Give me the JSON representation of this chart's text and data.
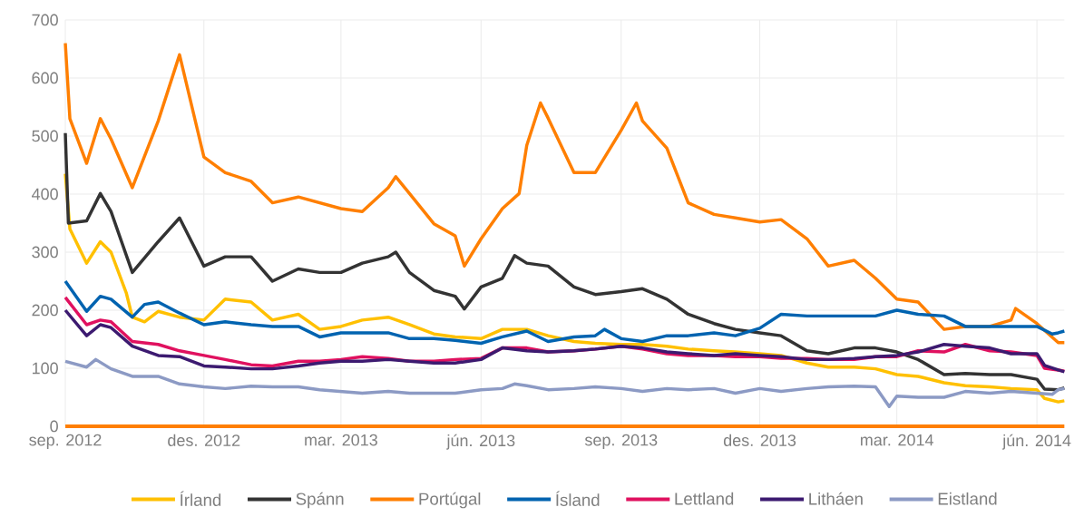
{
  "chart_data": {
    "type": "line",
    "xlim": [
      "2012-09-01",
      "2014-06-19"
    ],
    "xticks": [
      {
        "value": "2012-09-01",
        "label": "sep. 2012"
      },
      {
        "value": "2012-12-01",
        "label": "des. 2012"
      },
      {
        "value": "2013-03-01",
        "label": "mar. 2013"
      },
      {
        "value": "2013-06-01",
        "label": "jún. 2013"
      },
      {
        "value": "2013-09-01",
        "label": "sep. 2013"
      },
      {
        "value": "2013-12-01",
        "label": "des. 2013"
      },
      {
        "value": "2014-03-01",
        "label": "mar. 2014"
      },
      {
        "value": "2014-06-01",
        "label": "jún. 2014"
      }
    ],
    "ylim": [
      0,
      700
    ],
    "yticks": [
      0,
      100,
      200,
      300,
      400,
      500,
      600,
      700
    ],
    "grid": true,
    "legend": "bottom",
    "series": [
      {
        "name": "Írland",
        "color": "#ffc000",
        "x": [
          "2012-09-01",
          "2012-09-04",
          "2012-09-15",
          "2012-09-24",
          "2012-10-01",
          "2012-10-11",
          "2012-10-15",
          "2012-10-23",
          "2012-11-01",
          "2012-11-15",
          "2012-12-01",
          "2012-12-15",
          "2013-01-01",
          "2013-01-15",
          "2013-02-01",
          "2013-02-15",
          "2013-03-01",
          "2013-03-15",
          "2013-04-01",
          "2013-04-15",
          "2013-05-01",
          "2013-05-15",
          "2013-06-01",
          "2013-06-15",
          "2013-07-01",
          "2013-07-15",
          "2013-08-01",
          "2013-08-15",
          "2013-09-01",
          "2013-09-15",
          "2013-10-01",
          "2013-10-15",
          "2013-11-01",
          "2013-11-15",
          "2013-12-01",
          "2013-12-15",
          "2014-01-01",
          "2014-01-15",
          "2014-02-01",
          "2014-02-15",
          "2014-03-01",
          "2014-03-15",
          "2014-04-01",
          "2014-04-15",
          "2014-05-01",
          "2014-05-15",
          "2014-06-01",
          "2014-06-06",
          "2014-06-15",
          "2014-06-19"
        ],
        "values": [
          435,
          340,
          281,
          318,
          300,
          230,
          188,
          180,
          198,
          188,
          183,
          219,
          214,
          183,
          193,
          167,
          172,
          183,
          188,
          175,
          159,
          154,
          151,
          167,
          167,
          156,
          146,
          143,
          141,
          141,
          138,
          133,
          130,
          128,
          125,
          122,
          109,
          102,
          102,
          99,
          89,
          86,
          75,
          70,
          68,
          65,
          63,
          48,
          42,
          44
        ]
      },
      {
        "name": "Spánn",
        "color": "#333333",
        "x": [
          "2012-09-01",
          "2012-09-03",
          "2012-09-15",
          "2012-09-24",
          "2012-10-01",
          "2012-10-15",
          "2012-11-01",
          "2012-11-15",
          "2012-12-01",
          "2012-12-15",
          "2013-01-01",
          "2013-01-15",
          "2013-02-01",
          "2013-02-15",
          "2013-03-01",
          "2013-03-15",
          "2013-04-01",
          "2013-04-06",
          "2013-04-15",
          "2013-05-01",
          "2013-05-15",
          "2013-05-21",
          "2013-06-01",
          "2013-06-15",
          "2013-06-23",
          "2013-07-01",
          "2013-07-15",
          "2013-08-01",
          "2013-08-15",
          "2013-09-01",
          "2013-09-15",
          "2013-10-01",
          "2013-10-15",
          "2013-11-01",
          "2013-11-15",
          "2013-12-01",
          "2013-12-15",
          "2014-01-01",
          "2014-01-15",
          "2014-02-01",
          "2014-02-15",
          "2014-03-01",
          "2014-03-15",
          "2014-04-01",
          "2014-04-15",
          "2014-05-01",
          "2014-05-15",
          "2014-06-01",
          "2014-06-06",
          "2014-06-15",
          "2014-06-19"
        ],
        "values": [
          505,
          350,
          354,
          401,
          370,
          265,
          318,
          359,
          276,
          292,
          292,
          250,
          271,
          265,
          265,
          281,
          292,
          300,
          265,
          234,
          224,
          202,
          240,
          255,
          294,
          281,
          276,
          240,
          227,
          232,
          237,
          219,
          193,
          177,
          167,
          161,
          156,
          130,
          125,
          135,
          135,
          128,
          115,
          89,
          91,
          89,
          89,
          81,
          64,
          63,
          66
        ]
      },
      {
        "name": "Portúgal",
        "color": "#ff7f00",
        "x": [
          "2012-09-01",
          "2012-09-04",
          "2012-09-15",
          "2012-09-24",
          "2012-10-01",
          "2012-10-15",
          "2012-11-01",
          "2012-11-15",
          "2012-12-01",
          "2012-12-15",
          "2013-01-01",
          "2013-01-15",
          "2013-02-01",
          "2013-02-15",
          "2013-03-01",
          "2013-03-15",
          "2013-04-01",
          "2013-04-06",
          "2013-04-15",
          "2013-05-01",
          "2013-05-15",
          "2013-05-21",
          "2013-06-01",
          "2013-06-15",
          "2013-06-26",
          "2013-07-01",
          "2013-07-10",
          "2013-07-15",
          "2013-08-01",
          "2013-08-15",
          "2013-09-01",
          "2013-09-11",
          "2013-09-15",
          "2013-10-01",
          "2013-10-15",
          "2013-11-01",
          "2013-11-15",
          "2013-12-01",
          "2013-12-15",
          "2014-01-01",
          "2014-01-15",
          "2014-02-01",
          "2014-02-15",
          "2014-03-01",
          "2014-03-15",
          "2014-04-01",
          "2014-04-15",
          "2014-05-01",
          "2014-05-15",
          "2014-05-18",
          "2014-06-01",
          "2014-06-15",
          "2014-06-19"
        ],
        "values": [
          660,
          530,
          453,
          530,
          495,
          411,
          526,
          640,
          464,
          437,
          422,
          385,
          395,
          385,
          375,
          370,
          411,
          430,
          401,
          349,
          328,
          276,
          323,
          375,
          401,
          484,
          557,
          531,
          437,
          437,
          510,
          557,
          526,
          479,
          385,
          365,
          359,
          352,
          356,
          323,
          276,
          286,
          255,
          219,
          214,
          167,
          172,
          172,
          183,
          203,
          177,
          144,
          144
        ]
      },
      {
        "name": "Ísland",
        "color": "#0063b0",
        "x": [
          "2012-09-01",
          "2012-09-15",
          "2012-09-24",
          "2012-10-01",
          "2012-10-15",
          "2012-10-23",
          "2012-11-01",
          "2012-11-15",
          "2012-12-01",
          "2012-12-15",
          "2013-01-01",
          "2013-01-15",
          "2013-02-01",
          "2013-02-15",
          "2013-03-01",
          "2013-03-15",
          "2013-04-01",
          "2013-04-15",
          "2013-05-01",
          "2013-05-15",
          "2013-06-01",
          "2013-06-15",
          "2013-07-01",
          "2013-07-15",
          "2013-08-01",
          "2013-08-15",
          "2013-08-21",
          "2013-09-01",
          "2013-09-15",
          "2013-10-01",
          "2013-10-15",
          "2013-11-01",
          "2013-11-15",
          "2013-12-01",
          "2013-12-15",
          "2014-01-01",
          "2014-01-15",
          "2014-02-01",
          "2014-02-15",
          "2014-03-01",
          "2014-03-15",
          "2014-04-01",
          "2014-04-15",
          "2014-05-01",
          "2014-05-15",
          "2014-06-01",
          "2014-06-11",
          "2014-06-15",
          "2014-06-19"
        ],
        "values": [
          250,
          198,
          224,
          219,
          188,
          210,
          214,
          195,
          175,
          180,
          175,
          172,
          172,
          154,
          161,
          161,
          161,
          151,
          151,
          148,
          143,
          154,
          164,
          146,
          154,
          156,
          167,
          151,
          146,
          156,
          156,
          161,
          156,
          169,
          193,
          190,
          190,
          190,
          190,
          200,
          193,
          190,
          172,
          172,
          172,
          172,
          159,
          161,
          164
        ]
      },
      {
        "name": "Lettland",
        "color": "#e0115f",
        "x": [
          "2012-09-01",
          "2012-09-15",
          "2012-09-24",
          "2012-10-01",
          "2012-10-15",
          "2012-11-01",
          "2012-11-15",
          "2012-12-01",
          "2012-12-15",
          "2013-01-01",
          "2013-01-15",
          "2013-02-01",
          "2013-02-15",
          "2013-03-01",
          "2013-03-15",
          "2013-04-01",
          "2013-04-15",
          "2013-05-01",
          "2013-05-15",
          "2013-06-01",
          "2013-06-15",
          "2013-07-01",
          "2013-07-15",
          "2013-08-01",
          "2013-08-15",
          "2013-09-01",
          "2013-09-15",
          "2013-10-01",
          "2013-10-15",
          "2013-11-01",
          "2013-11-15",
          "2013-12-01",
          "2013-12-15",
          "2014-01-01",
          "2014-01-15",
          "2014-02-01",
          "2014-02-15",
          "2014-03-01",
          "2014-03-15",
          "2014-04-01",
          "2014-04-15",
          "2014-05-01",
          "2014-05-15",
          "2014-06-01",
          "2014-06-06",
          "2014-06-15",
          "2014-06-19"
        ],
        "values": [
          222,
          175,
          183,
          180,
          146,
          141,
          130,
          122,
          115,
          106,
          104,
          112,
          112,
          115,
          120,
          117,
          112,
          112,
          115,
          117,
          135,
          135,
          128,
          130,
          133,
          138,
          133,
          125,
          122,
          122,
          120,
          120,
          117,
          117,
          115,
          115,
          120,
          120,
          130,
          128,
          141,
          130,
          128,
          122,
          100,
          97,
          95
        ]
      },
      {
        "name": "Litháen",
        "color": "#3c1a70",
        "x": [
          "2012-09-01",
          "2012-09-15",
          "2012-09-24",
          "2012-10-01",
          "2012-10-15",
          "2012-11-01",
          "2012-11-15",
          "2012-12-01",
          "2012-12-15",
          "2013-01-01",
          "2013-01-15",
          "2013-02-01",
          "2013-02-15",
          "2013-03-01",
          "2013-03-15",
          "2013-04-01",
          "2013-04-15",
          "2013-05-01",
          "2013-05-15",
          "2013-06-01",
          "2013-06-15",
          "2013-07-01",
          "2013-07-15",
          "2013-08-01",
          "2013-08-15",
          "2013-09-01",
          "2013-09-15",
          "2013-10-01",
          "2013-10-15",
          "2013-11-01",
          "2013-11-15",
          "2013-12-01",
          "2013-12-15",
          "2014-01-01",
          "2014-01-15",
          "2014-02-01",
          "2014-02-15",
          "2014-03-01",
          "2014-03-15",
          "2014-04-01",
          "2014-04-15",
          "2014-05-01",
          "2014-05-15",
          "2014-06-01",
          "2014-06-06",
          "2014-06-15",
          "2014-06-19"
        ],
        "values": [
          200,
          156,
          175,
          170,
          138,
          122,
          120,
          104,
          102,
          99,
          99,
          104,
          109,
          112,
          112,
          115,
          112,
          109,
          109,
          115,
          135,
          130,
          128,
          130,
          133,
          138,
          135,
          128,
          125,
          122,
          125,
          122,
          120,
          115,
          115,
          117,
          120,
          122,
          128,
          141,
          138,
          135,
          125,
          125,
          105,
          97,
          94
        ]
      },
      {
        "name": "Eistland",
        "color": "#8c9ac4",
        "x": [
          "2012-09-01",
          "2012-09-15",
          "2012-09-21",
          "2012-10-01",
          "2012-10-15",
          "2012-11-01",
          "2012-11-15",
          "2012-12-01",
          "2012-12-15",
          "2013-01-01",
          "2013-01-15",
          "2013-02-01",
          "2013-02-15",
          "2013-03-01",
          "2013-03-15",
          "2013-04-01",
          "2013-04-15",
          "2013-05-01",
          "2013-05-15",
          "2013-06-01",
          "2013-06-15",
          "2013-06-23",
          "2013-07-01",
          "2013-07-15",
          "2013-08-01",
          "2013-08-15",
          "2013-09-01",
          "2013-09-15",
          "2013-10-01",
          "2013-10-15",
          "2013-11-01",
          "2013-11-15",
          "2013-12-01",
          "2013-12-15",
          "2014-01-01",
          "2014-01-15",
          "2014-02-01",
          "2014-02-15",
          "2014-02-24",
          "2014-03-01",
          "2014-03-15",
          "2014-04-01",
          "2014-04-15",
          "2014-05-01",
          "2014-05-15",
          "2014-06-01",
          "2014-06-11",
          "2014-06-15",
          "2014-06-19"
        ],
        "values": [
          112,
          102,
          115,
          99,
          86,
          86,
          73,
          68,
          65,
          69,
          68,
          68,
          63,
          60,
          57,
          60,
          57,
          57,
          57,
          63,
          65,
          73,
          70,
          63,
          65,
          68,
          65,
          60,
          65,
          63,
          65,
          57,
          65,
          60,
          65,
          68,
          69,
          68,
          34,
          52,
          50,
          50,
          60,
          57,
          60,
          57,
          55,
          63,
          65
        ]
      }
    ]
  }
}
